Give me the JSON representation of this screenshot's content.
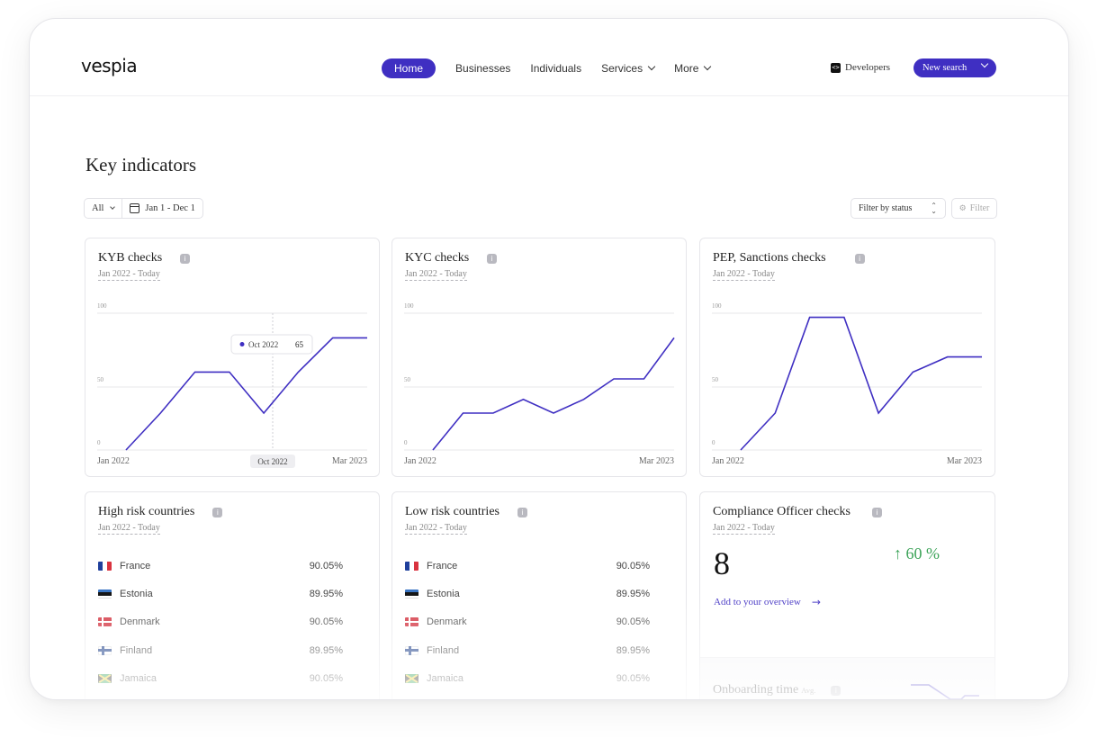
{
  "app": {
    "logo": "vespia"
  },
  "nav": {
    "items": [
      {
        "label": "Home",
        "active": true
      },
      {
        "label": "Businesses"
      },
      {
        "label": "Individuals"
      },
      {
        "label": "Services",
        "dropdown": true
      },
      {
        "label": "More",
        "dropdown": true
      }
    ],
    "developers": "Developers",
    "new_search": "New search"
  },
  "page": {
    "title": "Key indicators"
  },
  "filters": {
    "scope": "All",
    "date_range": "Jan 1 - Dec 1",
    "status": "Filter by status",
    "filter_button": "Filter"
  },
  "colors": {
    "accent": "#3f2fc2",
    "positive": "#3ea45a"
  },
  "cards": {
    "kyb": {
      "title": "KYB checks",
      "range": "Jan 2022 - Today",
      "tooltip": {
        "label": "Oct 2022",
        "value": "65"
      },
      "x_start": "Jan 2022",
      "x_end": "Mar 2023",
      "x_highlight": "Oct 2022"
    },
    "kyc": {
      "title": "KYC checks",
      "range": "Jan 2022 - Today",
      "x_start": "Jan 2022",
      "x_end": "Mar 2023"
    },
    "pep": {
      "title": "PEP, Sanctions checks",
      "range": "Jan 2022 - Today",
      "x_start": "Jan 2022",
      "x_end": "Mar 2023"
    },
    "high_risk": {
      "title": "High risk countries",
      "range": "Jan 2022 - Today",
      "rows": [
        {
          "country": "France",
          "pct": "90.05%",
          "flag": "fr"
        },
        {
          "country": "Estonia",
          "pct": "89.95%",
          "flag": "ee"
        },
        {
          "country": "Denmark",
          "pct": "90.05%",
          "flag": "dk"
        },
        {
          "country": "Finland",
          "pct": "89.95%",
          "flag": "fi"
        },
        {
          "country": "Jamaica",
          "pct": "90.05%",
          "flag": "jm"
        }
      ]
    },
    "low_risk": {
      "title": "Low risk countries",
      "range": "Jan 2022 - Today",
      "rows": [
        {
          "country": "France",
          "pct": "90.05%",
          "flag": "fr"
        },
        {
          "country": "Estonia",
          "pct": "89.95%",
          "flag": "ee"
        },
        {
          "country": "Denmark",
          "pct": "90.05%",
          "flag": "dk"
        },
        {
          "country": "Finland",
          "pct": "89.95%",
          "flag": "fi"
        },
        {
          "country": "Jamaica",
          "pct": "90.05%",
          "flag": "jm"
        }
      ]
    },
    "compliance": {
      "title": "Compliance Officer checks",
      "range": "Jan 2022 - Today",
      "value": "8",
      "trend": "↑ 60 %",
      "link": "Add to your overview"
    },
    "onboarding": {
      "title": "Onboarding time",
      "suffix": "Avg."
    }
  },
  "chart_data": [
    {
      "type": "line",
      "id": "kyb",
      "ylim": [
        0,
        100
      ],
      "yticks": [
        "100",
        "50",
        "0"
      ],
      "values": [
        0,
        27,
        57,
        57,
        27,
        57,
        82,
        82
      ]
    },
    {
      "type": "line",
      "id": "kyc",
      "ylim": [
        0,
        100
      ],
      "yticks": [
        "100",
        "50",
        "0"
      ],
      "values": [
        0,
        27,
        27,
        37,
        27,
        37,
        52,
        52,
        82
      ]
    },
    {
      "type": "line",
      "id": "pep",
      "ylim": [
        0,
        100
      ],
      "yticks": [
        "100",
        "50",
        "0"
      ],
      "values": [
        0,
        27,
        97,
        97,
        27,
        57,
        68,
        68
      ]
    }
  ]
}
